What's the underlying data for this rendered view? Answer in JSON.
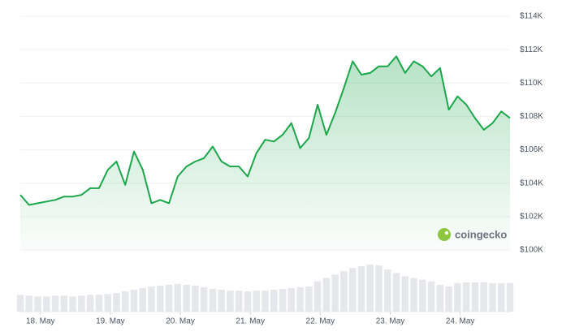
{
  "chart_data": {
    "type": "line",
    "watermark": "coingecko",
    "color": "#1ca64c",
    "volume_color": "#e5e7eb",
    "xlim": [
      0,
      56
    ],
    "xticks": [
      {
        "value": 2.3,
        "label": "18. May"
      },
      {
        "value": 10.3,
        "label": "19. May"
      },
      {
        "value": 18.3,
        "label": "20. May"
      },
      {
        "value": 26.3,
        "label": "21. May"
      },
      {
        "value": 34.3,
        "label": "22. May"
      },
      {
        "value": 42.3,
        "label": "23. May"
      },
      {
        "value": 50.3,
        "label": "24. May"
      }
    ],
    "ylim": [
      100000,
      114000
    ],
    "yticks": [
      {
        "value": 100000,
        "label": "$100K"
      },
      {
        "value": 102000,
        "label": "$102K"
      },
      {
        "value": 104000,
        "label": "$104K"
      },
      {
        "value": 106000,
        "label": "$106K"
      },
      {
        "value": 108000,
        "label": "$108K"
      },
      {
        "value": 110000,
        "label": "$110K"
      },
      {
        "value": 112000,
        "label": "$112K"
      },
      {
        "value": 114000,
        "label": "$114K"
      }
    ],
    "grid": true,
    "values": [
      103300,
      102700,
      102800,
      102900,
      103000,
      103200,
      103200,
      103300,
      103700,
      103700,
      104800,
      105300,
      103900,
      105900,
      104800,
      102800,
      103000,
      102800,
      104400,
      105000,
      105300,
      105500,
      106200,
      105300,
      105000,
      105000,
      104400,
      105800,
      106600,
      106500,
      106900,
      107600,
      106100,
      106700,
      108700,
      106900,
      108200,
      109700,
      111300,
      110500,
      110600,
      111000,
      111000,
      111600,
      110600,
      111300,
      111000,
      110400,
      110900,
      108400,
      109200,
      108700,
      107900,
      107200,
      107600,
      108300,
      107900
    ],
    "volume": [
      20,
      19,
      18,
      18,
      19,
      19,
      18,
      19,
      20,
      20,
      21,
      22,
      24,
      26,
      28,
      30,
      31,
      32,
      33,
      32,
      31,
      29,
      27,
      26,
      25,
      25,
      24,
      25,
      25,
      26,
      27,
      28,
      29,
      30,
      36,
      40,
      44,
      48,
      52,
      54,
      56,
      55,
      50,
      46,
      42,
      40,
      38,
      36,
      32,
      30,
      34,
      35,
      35,
      35,
      34,
      34,
      34
    ]
  }
}
